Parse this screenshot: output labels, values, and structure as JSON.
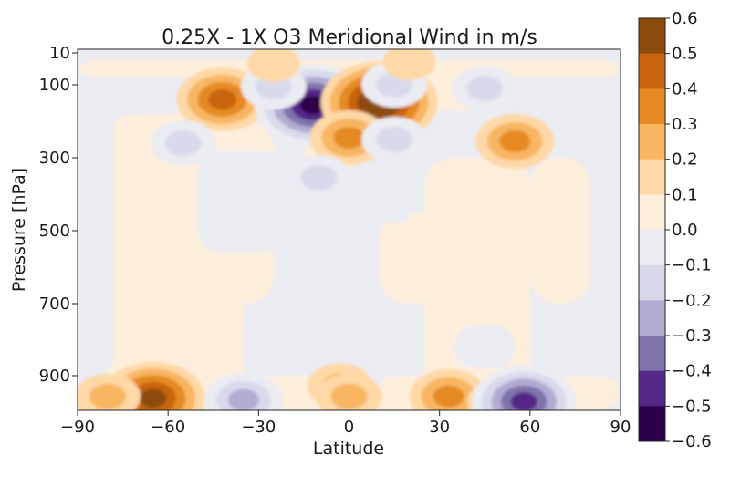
{
  "chart_data": {
    "type": "heatmap",
    "title": "0.25X - 1X O3 Meridional Wind in m/s",
    "xlabel": "Latitude",
    "ylabel": "Pressure [hPa]",
    "xlim": [
      -90,
      90
    ],
    "ylim": [
      10,
      1000
    ],
    "y_axis_inverted": true,
    "x_ticks": [
      -90,
      -60,
      -30,
      0,
      30,
      60,
      90
    ],
    "x_tick_labels": [
      "−90",
      "−60",
      "−30",
      "0",
      "30",
      "60",
      "90"
    ],
    "y_ticks": [
      10,
      100,
      300,
      500,
      700,
      900
    ],
    "y_tick_labels": [
      "10",
      "100",
      "300",
      "500",
      "700",
      "900"
    ],
    "colorbar": {
      "levels": [
        -0.6,
        -0.5,
        -0.4,
        -0.3,
        -0.2,
        -0.1,
        0.0,
        0.1,
        0.2,
        0.3,
        0.4,
        0.5,
        0.6
      ],
      "tick_labels": [
        "−0.6",
        "−0.5",
        "−0.4",
        "−0.3",
        "−0.2",
        "−0.1",
        "0.0",
        "0.1",
        "0.2",
        "0.3",
        "0.4",
        "0.5",
        "0.6"
      ],
      "colors": [
        "#2d004b",
        "#542788",
        "#8073ac",
        "#b2abd2",
        "#d8daeb",
        "#ebebf2",
        "#fdeedb",
        "#fed8a6",
        "#f8b562",
        "#e58a22",
        "#c96410",
        "#8c4b0d"
      ]
    },
    "features": [
      {
        "lat": -65,
        "p": 965,
        "value": 0.45
      },
      {
        "lat": -80,
        "p": 960,
        "value": 0.15
      },
      {
        "lat": -35,
        "p": 970,
        "value": -0.3
      },
      {
        "lat": -3,
        "p": 930,
        "value": 0.15
      },
      {
        "lat": 0,
        "p": 960,
        "value": 0.1
      },
      {
        "lat": 33,
        "p": 960,
        "value": 0.28
      },
      {
        "lat": 50,
        "p": 975,
        "value": 0.1
      },
      {
        "lat": 58,
        "p": 975,
        "value": -0.45
      },
      {
        "lat": -42,
        "p": 140,
        "value": 0.32
      },
      {
        "lat": -12,
        "p": 155,
        "value": -0.55
      },
      {
        "lat": 10,
        "p": 148,
        "value": 0.5
      },
      {
        "lat": 0,
        "p": 245,
        "value": 0.25
      },
      {
        "lat": -25,
        "p": 105,
        "value": -0.12
      },
      {
        "lat": 15,
        "p": 100,
        "value": -0.12
      },
      {
        "lat": 45,
        "p": 110,
        "value": -0.12
      },
      {
        "lat": 15,
        "p": 250,
        "value": -0.15
      },
      {
        "lat": -55,
        "p": 260,
        "value": -0.12
      },
      {
        "lat": 55,
        "p": 255,
        "value": 0.2
      },
      {
        "lat": -10,
        "p": 355,
        "value": -0.12
      },
      {
        "lat": 20,
        "p": 35,
        "value": 0.08
      },
      {
        "lat": -25,
        "p": 40,
        "value": 0.06
      }
    ]
  }
}
